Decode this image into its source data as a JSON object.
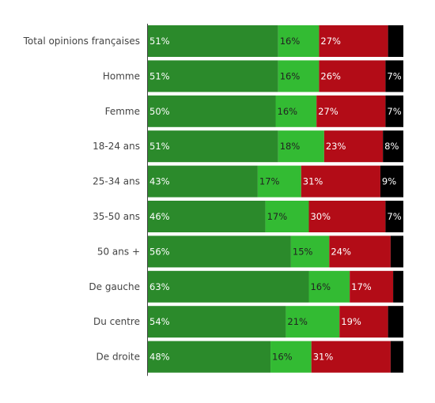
{
  "chart_data": {
    "type": "bar",
    "orientation": "horizontal",
    "stacked": true,
    "normalized": true,
    "categories": [
      "Total opinions françaises",
      "Homme",
      "Femme",
      "18-24 ans",
      "25-34 ans",
      "35-50 ans",
      "50 ans +",
      "De gauche",
      "Du centre",
      "De droite"
    ],
    "series": [
      {
        "color": "#2b8a2b",
        "label_color": "#ffffff",
        "values": [
          51,
          51,
          50,
          51,
          43,
          46,
          56,
          63,
          54,
          48
        ]
      },
      {
        "color": "#33bb33",
        "label_color": "#222222",
        "values": [
          16,
          16,
          16,
          18,
          17,
          17,
          15,
          16,
          21,
          16
        ]
      },
      {
        "color": "#b30c17",
        "label_color": "#ffffff",
        "values": [
          27,
          26,
          27,
          23,
          31,
          30,
          24,
          17,
          19,
          31
        ]
      },
      {
        "color": "#000000",
        "label_color": "#ffffff",
        "values": [
          6,
          7,
          7,
          8,
          9,
          7,
          5,
          4,
          6,
          5
        ]
      }
    ],
    "labels": [
      [
        "51%",
        "16%",
        "27%",
        ""
      ],
      [
        "51%",
        "16%",
        "26%",
        "7%"
      ],
      [
        "50%",
        "16%",
        "27%",
        "7%"
      ],
      [
        "51%",
        "18%",
        "23%",
        "8%"
      ],
      [
        "43%",
        "17%",
        "31%",
        "9%"
      ],
      [
        "46%",
        "17%",
        "30%",
        "7%"
      ],
      [
        "56%",
        "15%",
        "24%",
        ""
      ],
      [
        "63%",
        "16%",
        "17%",
        ""
      ],
      [
        "54%",
        "21%",
        "19%",
        ""
      ],
      [
        "48%",
        "16%",
        "31%",
        ""
      ]
    ],
    "xlim": [
      0,
      100
    ],
    "grid": false,
    "legend": "none"
  }
}
